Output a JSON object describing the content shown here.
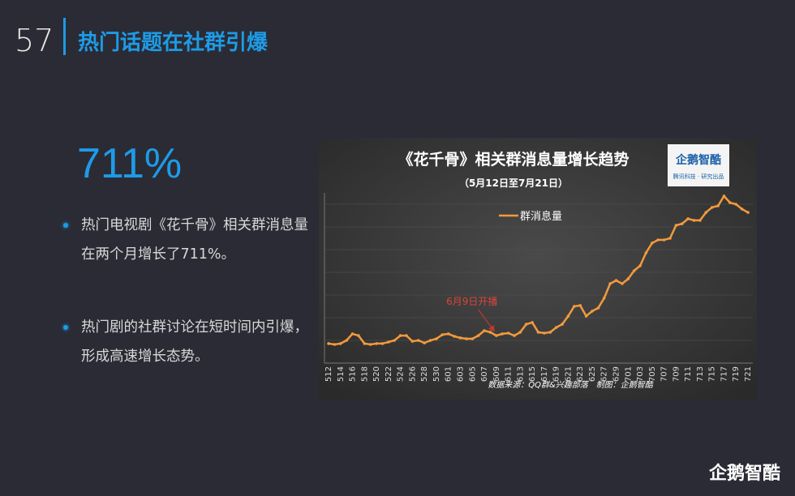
{
  "page_number": "57",
  "title": "热门话题在社群引爆",
  "key_stat": "711%",
  "bullets": [
    "热门电视剧《花千骨》相关群消息量在两个月增长了711%。",
    "热门剧的社群讨论在短时间内引爆，形成高速增长态势。"
  ],
  "logo": "企鹅智酷",
  "chart_data": {
    "type": "line",
    "title": "《花千骨》相关群消息量增长趋势",
    "subtitle": "（5月12日至7月21日）",
    "logo": "企鹅智酷",
    "logo_sub": "腾讯科技 · 研究出品",
    "source": "数据来源：QQ群&兴趣部落　制图：企鹅智酷",
    "annotation": {
      "text": "6月9日开播",
      "index": 28
    },
    "categories": [
      "512",
      null,
      "514",
      null,
      "516",
      null,
      "518",
      null,
      "520",
      null,
      "522",
      null,
      "524",
      null,
      "526",
      null,
      "528",
      null,
      "530",
      null,
      "601",
      null,
      "603",
      null,
      "605",
      null,
      "607",
      null,
      "609",
      null,
      "611",
      null,
      "613",
      null,
      "615",
      null,
      "617",
      null,
      "619",
      null,
      "621",
      null,
      "623",
      null,
      "625",
      null,
      "627",
      null,
      "629",
      null,
      "701",
      null,
      "703",
      null,
      "705",
      null,
      "707",
      null,
      "709",
      null,
      "711",
      null,
      "713",
      null,
      "715",
      null,
      "717",
      null,
      "719",
      null,
      "721"
    ],
    "series": [
      {
        "name": "群消息量",
        "color": "#f39a3c",
        "values": [
          0.86,
          0.82,
          0.86,
          1.0,
          1.29,
          1.21,
          0.86,
          0.82,
          0.86,
          0.86,
          0.93,
          1.0,
          1.21,
          1.21,
          0.96,
          1.0,
          0.89,
          1.0,
          1.07,
          1.25,
          1.29,
          1.18,
          1.11,
          1.07,
          1.07,
          1.21,
          1.43,
          1.36,
          1.21,
          1.29,
          1.32,
          1.21,
          1.36,
          1.71,
          1.79,
          1.36,
          1.32,
          1.36,
          1.57,
          1.71,
          2.07,
          2.5,
          2.54,
          2.07,
          2.29,
          2.43,
          2.86,
          3.5,
          3.64,
          3.5,
          3.71,
          4.07,
          4.29,
          4.86,
          5.29,
          5.43,
          5.43,
          5.5,
          6.07,
          6.14,
          6.36,
          6.29,
          6.29,
          6.64,
          6.86,
          6.93,
          7.36,
          7.07,
          7.0,
          6.79,
          6.64
        ]
      }
    ],
    "ylim": [
      0,
      7.5
    ],
    "grid": true
  }
}
